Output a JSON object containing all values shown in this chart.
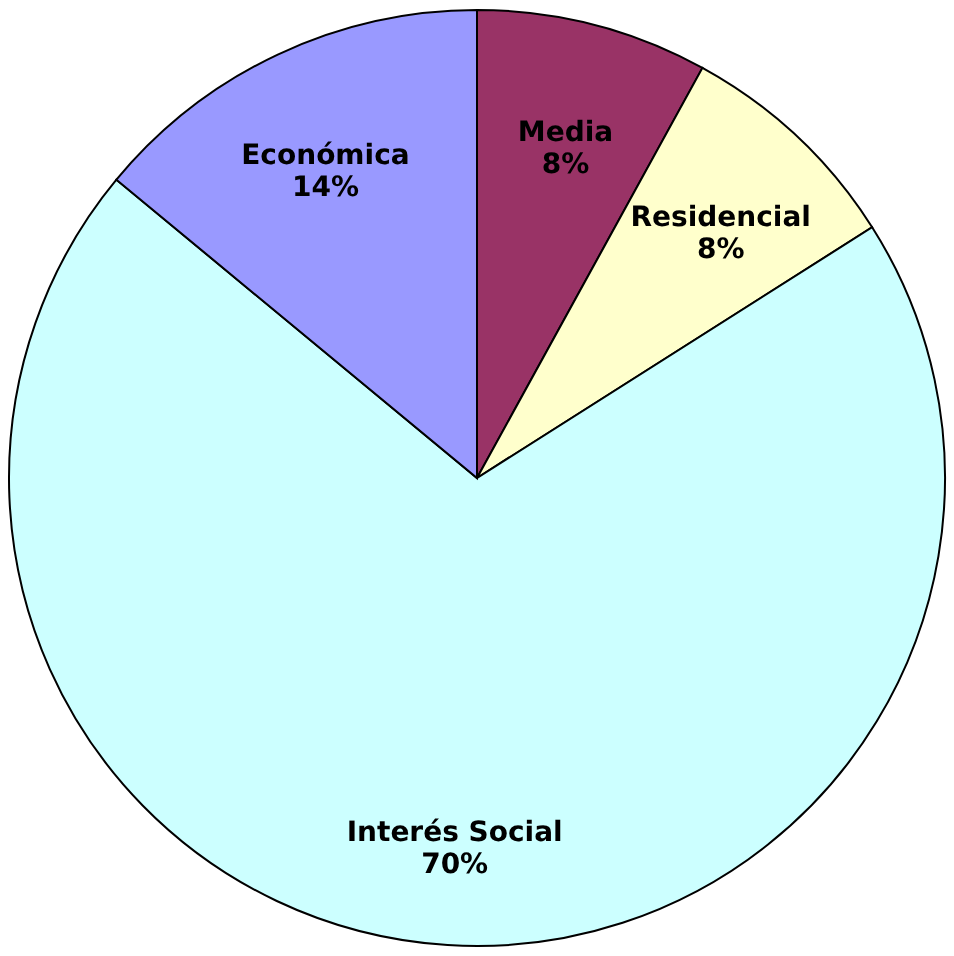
{
  "chart_data": {
    "type": "pie",
    "categories": [
      "Media",
      "Residencial",
      "Interés Social",
      "Económica"
    ],
    "values": [
      8,
      8,
      70,
      14
    ],
    "value_labels": [
      "8%",
      "8%",
      "70%",
      "14%"
    ],
    "colors": [
      "#993366",
      "#ffffcc",
      "#ccffff",
      "#9999ff"
    ],
    "legend": false
  }
}
